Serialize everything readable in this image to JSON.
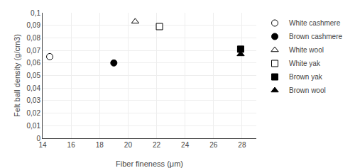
{
  "chart_data": {
    "type": "scatter",
    "xlabel": "Fiber fineness (μm)",
    "ylabel": "Felt ball density (g/cm3)",
    "series": [
      {
        "name": "White cashmere",
        "x": [
          14.5
        ],
        "values": [
          0.065
        ],
        "color": "#ffffff",
        "marker": "circle"
      },
      {
        "name": "Brown cashmere",
        "x": [
          19.0
        ],
        "values": [
          0.06
        ],
        "color": "#000000",
        "marker": "circle"
      },
      {
        "name": "White wool",
        "x": [
          20.5
        ],
        "values": [
          0.093
        ],
        "color": "#ffffff",
        "marker": "triangle"
      },
      {
        "name": "White yak",
        "x": [
          22.2
        ],
        "values": [
          0.089
        ],
        "color": "#ffffff",
        "marker": "square"
      },
      {
        "name": "Brown yak",
        "x": [
          27.9
        ],
        "values": [
          0.071
        ],
        "color": "#000000",
        "marker": "square"
      },
      {
        "name": "Brown wool",
        "x": [
          27.9
        ],
        "values": [
          0.067
        ],
        "color": "#000000",
        "marker": "triangle"
      }
    ],
    "xlim": [
      14,
      29
    ],
    "ylim": [
      0,
      0.1
    ],
    "xticks": [
      14,
      16,
      18,
      20,
      22,
      24,
      26,
      28
    ],
    "yticks": [
      0,
      {
        "value": 0.01,
        "label": "0,01"
      },
      {
        "value": 0.02,
        "label": "0,02"
      },
      {
        "value": 0.03,
        "label": "0,03"
      },
      {
        "value": 0.04,
        "label": "0,04"
      },
      {
        "value": 0.05,
        "label": "0,05"
      },
      {
        "value": 0.06,
        "label": "0,06"
      },
      {
        "value": 0.07,
        "label": "0,07"
      },
      {
        "value": 0.08,
        "label": "0,08"
      },
      {
        "value": 0.09,
        "label": "0,09"
      },
      {
        "value": 0.1,
        "label": "0,1"
      }
    ],
    "grid": true,
    "legend": "right"
  }
}
